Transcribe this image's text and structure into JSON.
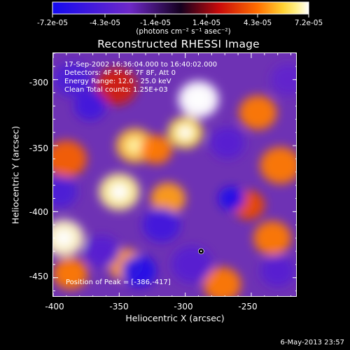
{
  "colorbar": {
    "ticks": [
      "-7.2e-05",
      "-4.3e-05",
      "-1.4e-05",
      "1.4e-05",
      "4.3e-05",
      "7.2e-05"
    ],
    "units_text": "(photons cm⁻² s⁻¹ asec⁻²)",
    "range": [
      -7.2e-05,
      7.2e-05
    ]
  },
  "plot": {
    "title": "Reconstructed RHESSI Image",
    "xlabel": "Heliocentric X (arcsec)",
    "ylabel": "Heliocentric Y (arcsec)",
    "xticks": [
      "-400",
      "-350",
      "-300",
      "-250"
    ],
    "yticks": [
      "-300",
      "-350",
      "-400",
      "-450"
    ],
    "info_lines": [
      "17-Sep-2002 16:36:04.000 to 16:40:02.000",
      "Detectors: 4F 5F 6F 7F 8F, Att 0",
      "Energy Range: 12.0 - 25.0 keV",
      "Clean     Total counts: 1.25E+03"
    ],
    "peak_text": "Position of Peak = [-386,-417]",
    "timestamp": "6-May-2013 23:57"
  },
  "chart_data": {
    "type": "heatmap",
    "title": "Reconstructed RHESSI Image",
    "xlabel": "Heliocentric X (arcsec)",
    "ylabel": "Heliocentric Y (arcsec)",
    "xlim": [
      -400,
      -215
    ],
    "ylim": [
      -465,
      -280
    ],
    "colorbar_range": [
      -7.2e-05,
      7.2e-05
    ],
    "colorbar_units": "photons cm⁻² s⁻¹ asec⁻²",
    "peak_position": [
      -386,
      -417
    ],
    "marker": [
      -288,
      -430
    ],
    "blobs": [
      {
        "x": -290,
        "y": -315,
        "value": 7.2e-05,
        "size": 14
      },
      {
        "x": -300,
        "y": -340,
        "value": 6e-05,
        "size": 12
      },
      {
        "x": -352,
        "y": -305,
        "value": 2.5e-05,
        "size": 14
      },
      {
        "x": -338,
        "y": -350,
        "value": 5.5e-05,
        "size": 13
      },
      {
        "x": -322,
        "y": -353,
        "value": 4.5e-05,
        "size": 11
      },
      {
        "x": -390,
        "y": -360,
        "value": 4e-05,
        "size": 14
      },
      {
        "x": -350,
        "y": -385,
        "value": 6.5e-05,
        "size": 14
      },
      {
        "x": -313,
        "y": -390,
        "value": 5e-05,
        "size": 12
      },
      {
        "x": -392,
        "y": -420,
        "value": 6.8e-05,
        "size": 14
      },
      {
        "x": -387,
        "y": -447,
        "value": 4.5e-05,
        "size": 12
      },
      {
        "x": -345,
        "y": -440,
        "value": 5e-05,
        "size": 12
      },
      {
        "x": -245,
        "y": -325,
        "value": 4.5e-05,
        "size": 13
      },
      {
        "x": -228,
        "y": -365,
        "value": 4.5e-05,
        "size": 14
      },
      {
        "x": -234,
        "y": -420,
        "value": 4.5e-05,
        "size": 13
      },
      {
        "x": -272,
        "y": -455,
        "value": 4.5e-05,
        "size": 13
      },
      {
        "x": -252,
        "y": -395,
        "value": 3.5e-05,
        "size": 11
      },
      {
        "x": -385,
        "y": -300,
        "value": -4.5e-05,
        "size": 13
      },
      {
        "x": -372,
        "y": -320,
        "value": -5e-05,
        "size": 11
      },
      {
        "x": -395,
        "y": -385,
        "value": -4.5e-05,
        "size": 12
      },
      {
        "x": -335,
        "y": -445,
        "value": -6.5e-05,
        "size": 12
      },
      {
        "x": -363,
        "y": -430,
        "value": -4e-05,
        "size": 12
      },
      {
        "x": -295,
        "y": -440,
        "value": -4e-05,
        "size": 14
      },
      {
        "x": -265,
        "y": -390,
        "value": -6.5e-05,
        "size": 9
      },
      {
        "x": -268,
        "y": -348,
        "value": -4e-05,
        "size": 12
      },
      {
        "x": -318,
        "y": -410,
        "value": -5e-05,
        "size": 13
      },
      {
        "x": -230,
        "y": -445,
        "value": -4e-05,
        "size": 12
      },
      {
        "x": -222,
        "y": -300,
        "value": -3.5e-05,
        "size": 12
      }
    ]
  }
}
